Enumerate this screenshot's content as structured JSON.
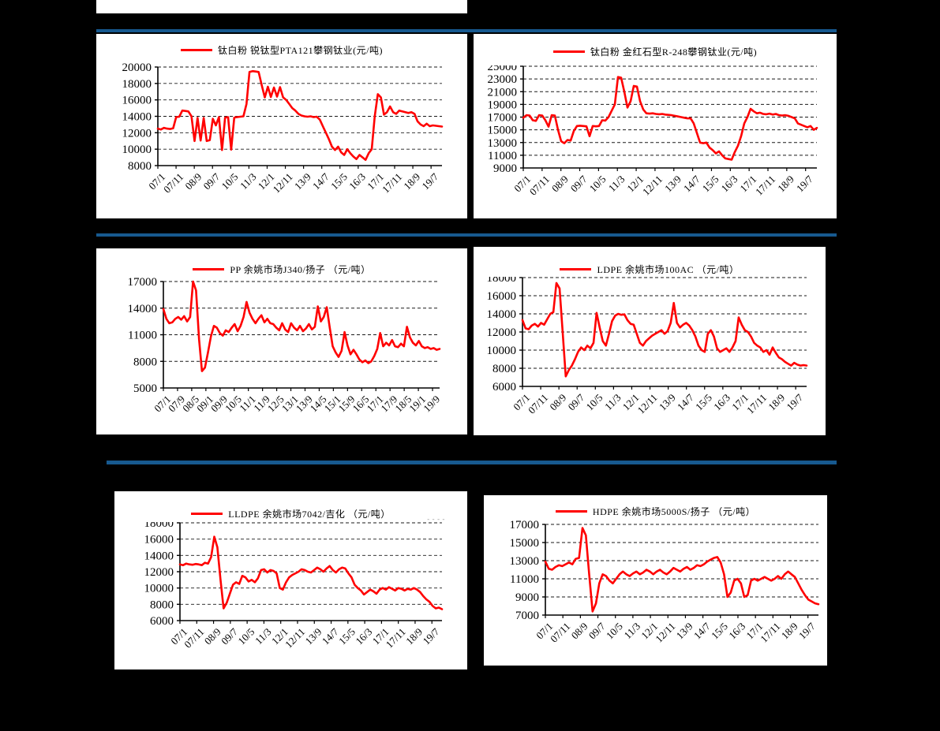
{
  "page": {
    "background": "#000000",
    "panel_background": "#FFFFFF",
    "divider_color": "#17598F",
    "accent_red": "#FF0000"
  },
  "artifacts": {
    "stray_marks": "----"
  },
  "chart_data": [
    {
      "type": "line",
      "legend": "钛白粉 锐钛型PTA121攀钢钛业(元/吨)",
      "unit": "元/吨",
      "line_color": "#FF0000",
      "ylim": [
        8000,
        20000
      ],
      "y_step": 2000,
      "grid": true,
      "legend_position": "top-center",
      "clip_top_label": false,
      "total_months": 156,
      "x_months": [
        0,
        10,
        20,
        30,
        40,
        50,
        60,
        70,
        80,
        90,
        100,
        110,
        120,
        130,
        140,
        150
      ],
      "x_labels": [
        "07/1",
        "07/11",
        "08/9",
        "09/7",
        "10/5",
        "11/3",
        "12/1",
        "12/11",
        "13/9",
        "14/7",
        "15/5",
        "16/3",
        "17/1",
        "17/11",
        "18/9",
        "19/7"
      ],
      "values": [
        12500,
        12400,
        12600,
        12500,
        12450,
        12550,
        13900,
        13950,
        14700,
        14650,
        14600,
        14000,
        11000,
        13800,
        11050,
        13800,
        11000,
        11100,
        13700,
        12900,
        13900,
        9900,
        13850,
        13900,
        9950,
        13850,
        13900,
        13950,
        14000,
        15500,
        19400,
        19500,
        19450,
        19400,
        17800,
        16300,
        17600,
        16350,
        17500,
        16400,
        17550,
        16300,
        16000,
        15500,
        15000,
        14700,
        14300,
        14100,
        14000,
        13950,
        14000,
        13900,
        13950,
        13600,
        12800,
        12000,
        11200,
        10300,
        9900,
        10300,
        9600,
        9300,
        10000,
        9500,
        9100,
        8800,
        9300,
        9000,
        8700,
        9500,
        10000,
        14000,
        16700,
        16300,
        14200,
        14500,
        15200,
        14500,
        14300,
        14700,
        14600,
        14500,
        14400,
        14500,
        14300,
        13400,
        13000,
        12800,
        13100,
        12800,
        12900,
        12850,
        12800,
        12750
      ]
    },
    {
      "type": "line",
      "legend": "钛白粉 金红石型R-248攀钢钛业(元/吨)",
      "unit": "元/吨",
      "line_color": "#FF0000",
      "ylim": [
        9000,
        25000
      ],
      "y_step": 2000,
      "grid": true,
      "legend_position": "top-center",
      "clip_top_label": true,
      "total_months": 156,
      "x_months": [
        0,
        10,
        20,
        30,
        40,
        50,
        60,
        70,
        80,
        90,
        100,
        110,
        120,
        130,
        140,
        150
      ],
      "x_labels": [
        "07/1",
        "07/11",
        "08/9",
        "09/7",
        "10/5",
        "11/3",
        "12/1",
        "12/11",
        "13/9",
        "14/7",
        "15/5",
        "16/3",
        "17/1",
        "17/11",
        "18/9",
        "19/7"
      ],
      "values": [
        16900,
        17300,
        17250,
        16500,
        16400,
        17300,
        17250,
        16500,
        15500,
        17300,
        17250,
        15000,
        13200,
        12900,
        13400,
        13300,
        14800,
        15600,
        15650,
        15600,
        15550,
        14000,
        15600,
        15550,
        15600,
        16500,
        16450,
        17000,
        18000,
        19000,
        23300,
        23200,
        21000,
        18500,
        19500,
        21900,
        21800,
        19500,
        18200,
        17600,
        17550,
        17600,
        17500,
        17450,
        17500,
        17400,
        17350,
        17300,
        17200,
        17100,
        17000,
        16900,
        16800,
        16800,
        16000,
        14500,
        13000,
        12900,
        13000,
        12200,
        11800,
        11300,
        11600,
        11000,
        10500,
        10400,
        10300,
        11500,
        12500,
        14000,
        16000,
        17000,
        18300,
        17900,
        17600,
        17700,
        17500,
        17450,
        17550,
        17400,
        17500,
        17300,
        17250,
        17300,
        17200,
        17000,
        16800,
        16000,
        15800,
        15600,
        15400,
        15600,
        15000,
        15300
      ]
    },
    {
      "type": "line",
      "legend": "PP 余姚市场J340/扬子 （元/吨）",
      "unit": "元/吨",
      "line_color": "#FF0000",
      "ylim": [
        5000,
        17000
      ],
      "y_step": 3000,
      "grid": true,
      "legend_position": "top-center",
      "clip_top_label": false,
      "total_months": 156,
      "x_months": [
        0,
        8,
        16,
        24,
        32,
        40,
        48,
        56,
        64,
        72,
        80,
        88,
        96,
        104,
        112,
        120,
        128,
        136,
        144,
        152
      ],
      "x_labels": [
        "07/1",
        "07/9",
        "08/5",
        "09/1",
        "09/9",
        "10/5",
        "11/1",
        "11/9",
        "12/5",
        "13/1",
        "13/9",
        "14/5",
        "15/1",
        "15/9",
        "16/5",
        "17/1",
        "17/9",
        "18/5",
        "19/1",
        "19/9"
      ],
      "values": [
        13900,
        12800,
        12300,
        12400,
        12800,
        13000,
        12700,
        13100,
        12500,
        13000,
        17000,
        16000,
        10500,
        6900,
        7300,
        9000,
        10800,
        12000,
        11800,
        11200,
        10900,
        11500,
        11300,
        11800,
        12200,
        11400,
        12000,
        13000,
        14700,
        13500,
        12800,
        12300,
        12800,
        13200,
        12400,
        12800,
        12300,
        12200,
        11800,
        11500,
        12300,
        11600,
        11300,
        12300,
        11800,
        11500,
        12000,
        11400,
        11700,
        12200,
        11600,
        11900,
        14200,
        12500,
        13000,
        14100,
        11800,
        9700,
        9000,
        8500,
        9200,
        11300,
        9800,
        8800,
        9300,
        8800,
        8200,
        7900,
        8100,
        7800,
        8000,
        8600,
        9400,
        11200,
        9700,
        10100,
        9800,
        10400,
        9700,
        9600,
        10000,
        9700,
        11900,
        10700,
        10100,
        9800,
        10300,
        9700,
        9500,
        9600,
        9400,
        9500,
        9300,
        9400
      ]
    },
    {
      "type": "line",
      "legend": "LDPE 余姚市场100AC （元/吨）",
      "unit": "元/吨",
      "line_color": "#FF0000",
      "ylim": [
        6000,
        18000
      ],
      "y_step": 2000,
      "grid": true,
      "legend_position": "top-center",
      "clip_top_label": true,
      "total_months": 156,
      "x_months": [
        0,
        10,
        20,
        30,
        40,
        50,
        60,
        70,
        80,
        90,
        100,
        110,
        120,
        130,
        140,
        150
      ],
      "x_labels": [
        "07/1",
        "07/11",
        "08/9",
        "09/7",
        "10/5",
        "11/3",
        "12/1",
        "12/11",
        "13/9",
        "14/7",
        "15/5",
        "16/3",
        "17/1",
        "17/11",
        "18/9",
        "19/7"
      ],
      "values": [
        13300,
        12400,
        12300,
        12700,
        12900,
        12600,
        13000,
        12800,
        13400,
        14000,
        14200,
        17400,
        16800,
        12000,
        7100,
        7800,
        8300,
        9000,
        9800,
        10300,
        10000,
        10500,
        10200,
        10800,
        14100,
        12500,
        11000,
        10500,
        11800,
        13200,
        13800,
        14000,
        13900,
        13950,
        13300,
        12900,
        12800,
        11800,
        10800,
        10500,
        11000,
        11300,
        11600,
        11800,
        12000,
        12200,
        11800,
        12100,
        13000,
        15200,
        13000,
        12500,
        12800,
        13000,
        12700,
        12200,
        11500,
        10500,
        10000,
        9800,
        11800,
        12200,
        11500,
        10200,
        9800,
        10000,
        10200,
        9800,
        10300,
        11000,
        13600,
        12800,
        12200,
        12000,
        11500,
        10800,
        10500,
        10300,
        9800,
        10000,
        9500,
        10300,
        9700,
        9200,
        9000,
        8700,
        8500,
        8300,
        8600,
        8400,
        8300,
        8350,
        8300
      ]
    },
    {
      "type": "line",
      "legend": "LLDPE 余姚市场7042/吉化 （元/吨）",
      "unit": "元/吨",
      "line_color": "#FF0000",
      "ylim": [
        6000,
        18000
      ],
      "y_step": 2000,
      "grid": true,
      "legend_position": "top-center",
      "clip_top_label": true,
      "total_months": 156,
      "x_months": [
        0,
        10,
        20,
        30,
        40,
        50,
        60,
        70,
        80,
        90,
        100,
        110,
        120,
        130,
        140,
        150
      ],
      "x_labels": [
        "07/1",
        "07/11",
        "08/9",
        "09/7",
        "10/5",
        "11/3",
        "12/1",
        "12/11",
        "13/9",
        "14/7",
        "15/5",
        "16/3",
        "17/1",
        "17/11",
        "18/9",
        "19/7"
      ],
      "values": [
        12900,
        12800,
        13000,
        12900,
        12850,
        12950,
        12900,
        12800,
        13100,
        13000,
        13800,
        16300,
        15000,
        11000,
        7500,
        8200,
        9300,
        10400,
        10700,
        10500,
        11500,
        11300,
        10800,
        11000,
        10700,
        11200,
        12200,
        12300,
        11900,
        12200,
        12100,
        11800,
        10000,
        9800,
        10700,
        11300,
        11600,
        11800,
        12000,
        12300,
        12200,
        12000,
        11900,
        12200,
        12500,
        12300,
        12000,
        12400,
        12700,
        12200,
        11900,
        12300,
        12500,
        12400,
        11800,
        11300,
        10400,
        10000,
        9700,
        9200,
        9500,
        9800,
        9600,
        9300,
        9800,
        10000,
        9800,
        10100,
        9900,
        9700,
        10000,
        9900,
        9700,
        9900,
        9800,
        10000,
        9800,
        9500,
        9000,
        8600,
        8300,
        7800,
        7500,
        7600,
        7400
      ]
    },
    {
      "type": "line",
      "legend": "HDPE 余姚市场5000S/扬子 （元/吨）",
      "unit": "元/吨",
      "line_color": "#FF0000",
      "ylim": [
        7000,
        17000
      ],
      "y_step": 2000,
      "grid": true,
      "legend_position": "top-center",
      "clip_top_label": false,
      "total_months": 156,
      "x_months": [
        0,
        10,
        20,
        30,
        40,
        50,
        60,
        70,
        80,
        90,
        100,
        110,
        120,
        130,
        140,
        150
      ],
      "x_labels": [
        "07/1",
        "07/11",
        "08/9",
        "09/7",
        "10/5",
        "11/3",
        "12/1",
        "12/11",
        "13/9",
        "14/7",
        "15/5",
        "16/3",
        "17/1",
        "17/11",
        "18/9",
        "19/7"
      ],
      "values": [
        12900,
        12100,
        12000,
        12300,
        12500,
        12400,
        12600,
        12800,
        12600,
        13200,
        13300,
        16600,
        15800,
        11500,
        7400,
        8300,
        10500,
        11500,
        11300,
        10800,
        10500,
        11000,
        11500,
        11800,
        11500,
        11300,
        11600,
        11800,
        11500,
        11700,
        12000,
        11800,
        11500,
        11800,
        12000,
        11700,
        11500,
        11800,
        12200,
        12000,
        11800,
        12100,
        12300,
        12000,
        12200,
        12500,
        12400,
        12600,
        12900,
        13100,
        13300,
        13400,
        12800,
        11500,
        9000,
        9500,
        10800,
        11000,
        10500,
        9000,
        9200,
        10800,
        11000,
        10800,
        11000,
        11200,
        11000,
        10800,
        11000,
        11300,
        11000,
        11500,
        11800,
        11500,
        11200,
        10500,
        9800,
        9200,
        8700,
        8500,
        8300,
        8200
      ]
    }
  ]
}
